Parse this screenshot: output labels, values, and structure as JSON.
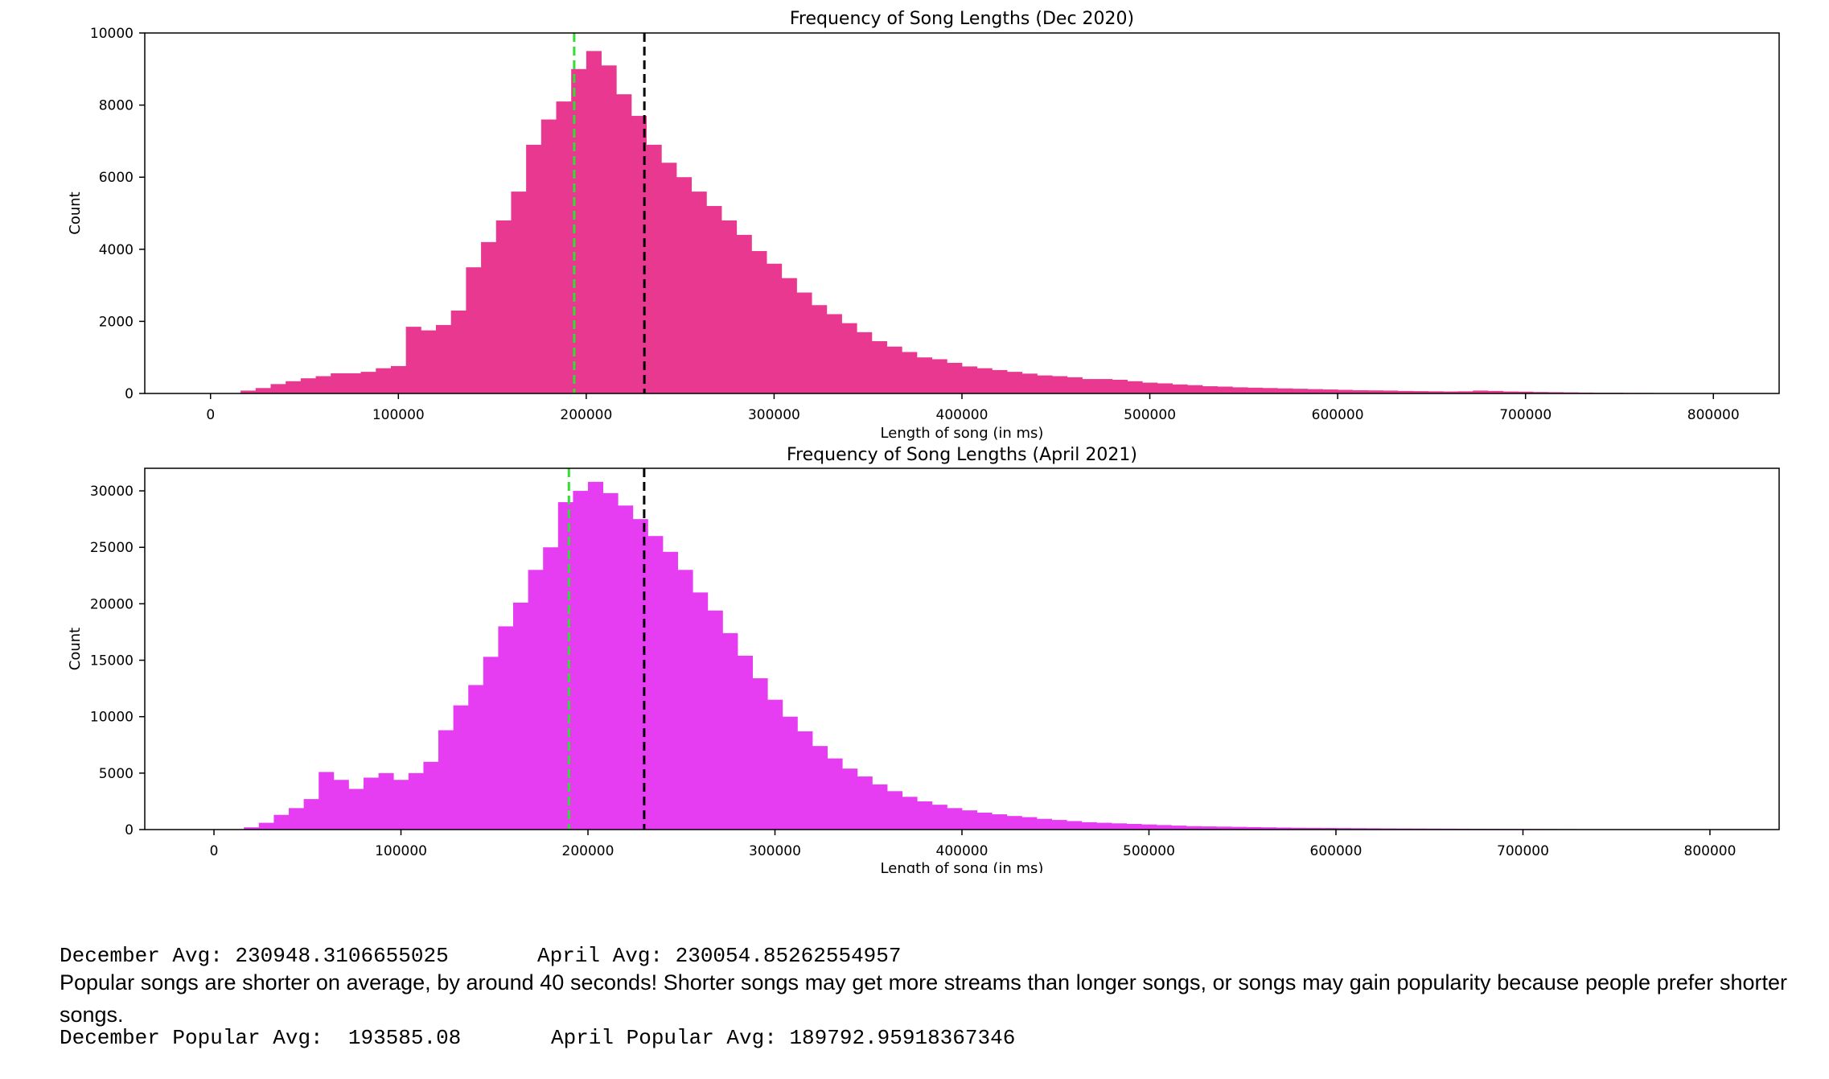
{
  "chart_data": [
    {
      "type": "bar",
      "title": "Frequency of Song Lengths (Dec 2020)",
      "xlabel": "Length of song (in ms)",
      "ylabel": "Count",
      "xlim": [
        -35000,
        835000
      ],
      "ylim": [
        0,
        10000
      ],
      "xticks": [
        "0",
        "100000",
        "200000",
        "300000",
        "400000",
        "500000",
        "600000",
        "700000",
        "800000"
      ],
      "yticks": [
        "0",
        "2000",
        "4000",
        "6000",
        "8000",
        "10000"
      ],
      "bin_start": 0,
      "bin_width": 8000,
      "values": [
        0,
        0,
        80,
        150,
        260,
        340,
        420,
        480,
        560,
        560,
        600,
        700,
        760,
        1850,
        1750,
        1900,
        2300,
        3500,
        4200,
        4800,
        5600,
        6900,
        7600,
        8100,
        9000,
        9500,
        9100,
        8300,
        7700,
        6900,
        6400,
        6000,
        5600,
        5200,
        4800,
        4400,
        3950,
        3600,
        3200,
        2800,
        2450,
        2200,
        1950,
        1700,
        1450,
        1300,
        1150,
        1000,
        950,
        850,
        750,
        700,
        650,
        600,
        550,
        500,
        480,
        450,
        400,
        400,
        380,
        340,
        300,
        280,
        250,
        230,
        200,
        190,
        170,
        160,
        150,
        140,
        130,
        120,
        110,
        100,
        90,
        85,
        80,
        70,
        65,
        60,
        55,
        60,
        80,
        70,
        55,
        50,
        40,
        35,
        30,
        25,
        20,
        20,
        15,
        15,
        10,
        10,
        8,
        5
      ],
      "vlines": [
        {
          "x": 193585.08,
          "color": "#33dd33",
          "style": "dashed"
        },
        {
          "x": 230948.31,
          "color": "#000000",
          "style": "dashed"
        }
      ],
      "bar_color": "#e8388f",
      "grid": false
    },
    {
      "type": "bar",
      "title": "Frequency of Song Lengths (April 2021)",
      "xlabel": "Length of song (in ms)",
      "ylabel": "Count",
      "xlim": [
        -37000,
        837000
      ],
      "ylim": [
        0,
        32000
      ],
      "xticks": [
        "0",
        "100000",
        "200000",
        "300000",
        "400000",
        "500000",
        "600000",
        "700000",
        "800000"
      ],
      "yticks": [
        "0",
        "5000",
        "10000",
        "15000",
        "20000",
        "25000",
        "30000"
      ],
      "bin_start": 0,
      "bin_width": 8000,
      "values": [
        0,
        0,
        200,
        600,
        1300,
        1900,
        2700,
        5100,
        4400,
        3600,
        4600,
        5000,
        4400,
        5000,
        6000,
        8800,
        11000,
        12800,
        15300,
        18000,
        20100,
        23000,
        25000,
        29000,
        30000,
        30800,
        29800,
        28700,
        27500,
        26000,
        24600,
        23000,
        21000,
        19400,
        17400,
        15400,
        13400,
        11500,
        10000,
        8700,
        7400,
        6300,
        5400,
        4700,
        4000,
        3400,
        2900,
        2500,
        2200,
        1900,
        1700,
        1500,
        1350,
        1200,
        1100,
        950,
        850,
        750,
        650,
        600,
        550,
        500,
        450,
        400,
        350,
        300,
        280,
        260,
        240,
        220,
        200,
        180,
        160,
        150,
        140,
        130,
        120,
        110,
        100,
        95,
        90,
        85,
        80,
        75,
        70,
        65,
        60,
        55,
        50,
        45,
        40,
        35,
        30,
        25,
        20,
        18,
        15,
        12,
        10,
        8
      ],
      "vlines": [
        {
          "x": 189792.96,
          "color": "#33dd33",
          "style": "dashed"
        },
        {
          "x": 230054.85,
          "color": "#000000",
          "style": "dashed"
        }
      ],
      "bar_color": "#e63cf2",
      "grid": false
    }
  ],
  "stats": {
    "dec_avg_label": "December Avg: 230948.3106655025",
    "apr_avg_label": "April Avg: 230054.85262554957",
    "dec_pop_label": "December Popular Avg:  193585.08",
    "apr_pop_label": "April Popular Avg: 189792.95918367346"
  },
  "caption": "Popular songs are shorter on average, by around 40 seconds! Shorter songs may get more streams than longer songs, or songs may gain popularity because people prefer shorter songs."
}
